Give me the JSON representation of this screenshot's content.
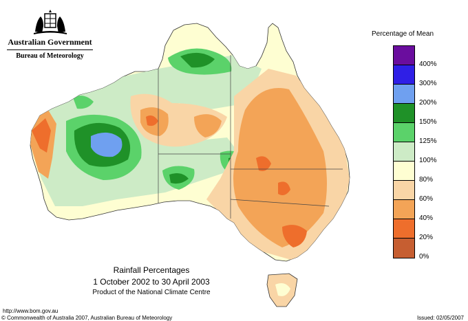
{
  "header": {
    "government": "Australian Government",
    "bureau": "Bureau of Meteorology"
  },
  "legend": {
    "title": "Percentage of Mean",
    "bins": [
      {
        "color": "#6a0d9e",
        "label": "400%"
      },
      {
        "color": "#2f1fe6",
        "label": "300%"
      },
      {
        "color": "#6fa0f0",
        "label": "200%"
      },
      {
        "color": "#1f9128",
        "label": "150%"
      },
      {
        "color": "#5bd26a",
        "label": "125%"
      },
      {
        "color": "#cdebc6",
        "label": "100%"
      },
      {
        "color": "#fefed2",
        "label": "80%"
      },
      {
        "color": "#f9d5a6",
        "label": "60%"
      },
      {
        "color": "#f3a457",
        "label": "40%"
      },
      {
        "color": "#ee6e2c",
        "label": "20%"
      },
      {
        "color": "#c65e31",
        "label": "0%"
      }
    ]
  },
  "title": {
    "line1": "Rainfall Percentages",
    "line2": "1 October 2002 to 30 April 2003",
    "line3": "Product of the National Climate Centre"
  },
  "footer": {
    "url": "http://www.bom.gov.au",
    "copyright": "© Commonwealth of Australia 2007, Australian Bureau of Meteorology",
    "issued": "Issued: 02/05/2007"
  }
}
